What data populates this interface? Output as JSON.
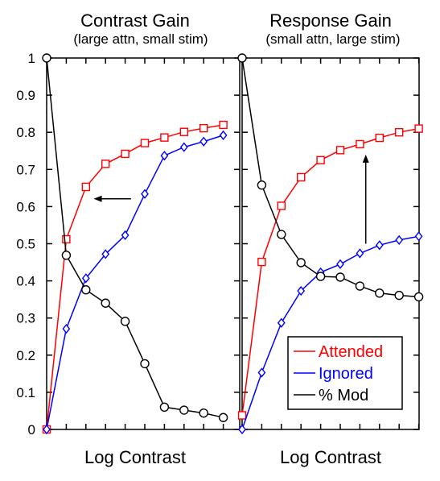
{
  "chart_data": [
    {
      "type": "line",
      "title": "Contrast Gain",
      "subtitle": "(large attn, small stim)",
      "xlabel": "Log Contrast",
      "ylabel": "",
      "ylim": [
        0,
        1
      ],
      "yticks": [
        "0",
        "0.1",
        "0.2",
        "0.3",
        "0.4",
        "0.5",
        "0.6",
        "0.7",
        "0.8",
        "0.9",
        "1"
      ],
      "x": [
        1,
        2,
        3,
        4,
        5,
        6,
        7,
        8,
        9,
        10
      ],
      "series": [
        {
          "name": "Attended",
          "color": "#ff0000",
          "marker": "square",
          "values": [
            0.0,
            0.512,
            0.653,
            0.715,
            0.742,
            0.771,
            0.786,
            0.801,
            0.811,
            0.82
          ]
        },
        {
          "name": "Ignored",
          "color": "#0000ff",
          "marker": "diamond",
          "values": [
            0.0,
            0.271,
            0.407,
            0.472,
            0.523,
            0.634,
            0.737,
            0.76,
            0.775,
            0.792
          ]
        },
        {
          "name": "% Mod",
          "color": "#000000",
          "marker": "circle",
          "values": [
            1.0,
            0.469,
            0.376,
            0.34,
            0.291,
            0.177,
            0.06,
            0.052,
            0.044,
            0.032
          ]
        }
      ],
      "annotation": {
        "type": "arrow",
        "direction": "left",
        "x_from": 5.3,
        "x_to": 3.4,
        "y": 0.621
      }
    },
    {
      "type": "line",
      "title": "Response Gain",
      "subtitle": "(small attn, large stim)",
      "xlabel": "Log Contrast",
      "ylabel": "",
      "ylim": [
        0,
        1
      ],
      "x": [
        1,
        2,
        3,
        4,
        5,
        6,
        7,
        8,
        9,
        10
      ],
      "series": [
        {
          "name": "Attended",
          "color": "#ff0000",
          "marker": "square",
          "values": [
            0.038,
            0.451,
            0.602,
            0.679,
            0.725,
            0.752,
            0.768,
            0.785,
            0.8,
            0.81
          ]
        },
        {
          "name": "Ignored",
          "color": "#0000ff",
          "marker": "diamond",
          "values": [
            0.0,
            0.153,
            0.287,
            0.373,
            0.423,
            0.445,
            0.474,
            0.496,
            0.51,
            0.52
          ]
        },
        {
          "name": "% Mod",
          "color": "#000000",
          "marker": "circle",
          "values": [
            1.0,
            0.658,
            0.525,
            0.449,
            0.412,
            0.41,
            0.386,
            0.367,
            0.361,
            0.357
          ]
        }
      ],
      "annotation": {
        "type": "arrow",
        "direction": "up",
        "x": 7.3,
        "y_from": 0.5,
        "y_to": 0.74
      }
    }
  ],
  "legend": {
    "placement": "bottom-right",
    "entries": [
      {
        "label": "Attended",
        "color": "#ff0000"
      },
      {
        "label": "Ignored",
        "color": "#0000ff"
      },
      {
        "label": "% Mod",
        "color": "#000000"
      }
    ]
  }
}
